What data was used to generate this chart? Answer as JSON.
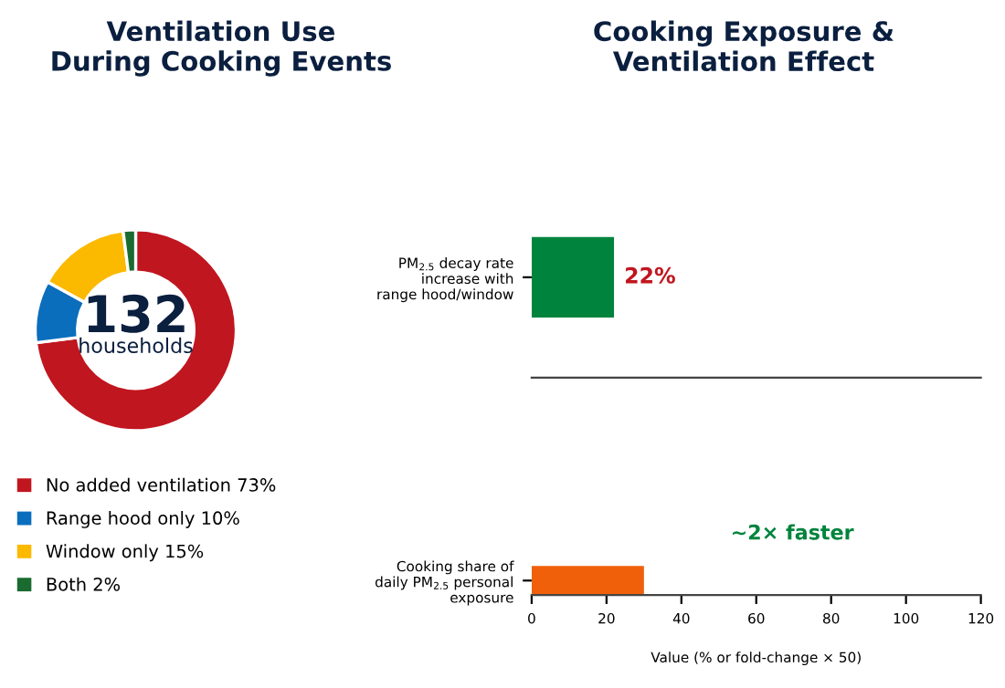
{
  "chart_data": [
    {
      "type": "donut",
      "title": "Ventilation Use\nDuring Cooking Events",
      "categories": [
        "No added ventilation 73%",
        "Range hood only 10%",
        "Window only 15%",
        "Both 2%"
      ],
      "values": [
        73,
        10,
        15,
        2
      ],
      "colors": [
        "#c0161f",
        "#0a6ebd",
        "#fbb900",
        "#1a6b30"
      ],
      "annotations": [
        "132",
        "households"
      ],
      "legend": "bottom"
    },
    {
      "type": "bar",
      "orientation": "horizontal",
      "title": "Cooking Exposure &\nVentilation Effect",
      "categories": [
        "PM$_{2.5}$ decay rate\nincrease with\nrange hood/window"
      ],
      "values": [
        22
      ],
      "color": "#00843d",
      "value_labels": [
        "22%"
      ],
      "xlim": [
        0,
        120
      ],
      "tick_labels": "y",
      "grid": false
    },
    {
      "type": "bar",
      "orientation": "horizontal",
      "categories": [
        "Cooking share of\ndaily PM$_{2.5}$ personal\nexposure"
      ],
      "values": [
        30
      ],
      "color": "#f0600a",
      "xlabel": "Value (% or fold-change × 50)",
      "xlim": [
        0,
        120
      ],
      "xticks": [
        0,
        20,
        40,
        60,
        80,
        100,
        120
      ],
      "annotations": [
        "~2× faster"
      ],
      "grid": false
    }
  ]
}
